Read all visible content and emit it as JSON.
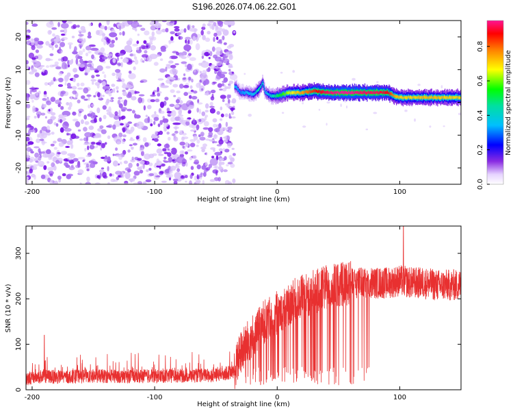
{
  "figure_title": "S196.2026.074.06.22.G01",
  "chart_data": [
    {
      "type": "heatmap",
      "title": "S196.2026.074.06.22.G01",
      "xlabel": "Height of straight line (km)",
      "ylabel": "Frequency (Hz)",
      "xlim": [
        -205,
        150
      ],
      "ylim": [
        -25,
        25
      ],
      "xticks": [
        -200,
        -100,
        0,
        100
      ],
      "yticks": [
        -20,
        -10,
        0,
        10,
        20
      ],
      "noise_region_x": [
        -205,
        -35
      ],
      "ridge": {
        "x": [
          -35,
          -30,
          -25,
          -20,
          -15,
          -12,
          -10,
          -5,
          0,
          10,
          20,
          30,
          40,
          50,
          60,
          70,
          80,
          90,
          95,
          100,
          110,
          120,
          130,
          140,
          150
        ],
        "freq": [
          5,
          3,
          3,
          2.5,
          4,
          6,
          3,
          2,
          2,
          3,
          3,
          3.5,
          3,
          3,
          3,
          3,
          3,
          3,
          2,
          1.5,
          1.5,
          1.5,
          1.5,
          1.5,
          1.5
        ],
        "amplitude": [
          0.35,
          0.3,
          0.35,
          0.35,
          0.45,
          0.4,
          0.35,
          0.4,
          0.5,
          0.65,
          0.75,
          0.85,
          0.92,
          0.95,
          0.95,
          0.92,
          0.92,
          0.88,
          0.75,
          0.7,
          0.7,
          0.72,
          0.72,
          0.7,
          0.7
        ]
      },
      "colorbar": {
        "label": "Normalized spectral amplitude",
        "range": [
          0,
          0.95
        ],
        "ticks": [
          "0.0",
          "0.2",
          "0.4",
          "0.6",
          "0.8"
        ]
      }
    },
    {
      "type": "line",
      "xlabel": "Height of straight line (km)",
      "ylabel": "SNR (10 * v/v)",
      "xlim": [
        -205,
        150
      ],
      "ylim": [
        0,
        360
      ],
      "xticks": [
        -200,
        -100,
        0,
        100
      ],
      "yticks": [
        0,
        100,
        200,
        300
      ],
      "series": [
        {
          "name": "SNR",
          "color": "#e83030",
          "x": [
            -205,
            -190,
            -180,
            -150,
            -100,
            -50,
            -35,
            -30,
            -20,
            -10,
            0,
            10,
            20,
            30,
            40,
            50,
            60,
            70,
            80,
            90,
            100,
            110,
            120,
            130,
            140,
            150
          ],
          "values": [
            25,
            30,
            28,
            30,
            30,
            32,
            40,
            80,
            120,
            150,
            170,
            190,
            205,
            215,
            225,
            230,
            235,
            235,
            235,
            235,
            240,
            235,
            235,
            230,
            230,
            230
          ]
        }
      ],
      "spikes": [
        {
          "x": -190,
          "value": 120
        },
        {
          "x": 103,
          "value": 360
        }
      ]
    }
  ]
}
